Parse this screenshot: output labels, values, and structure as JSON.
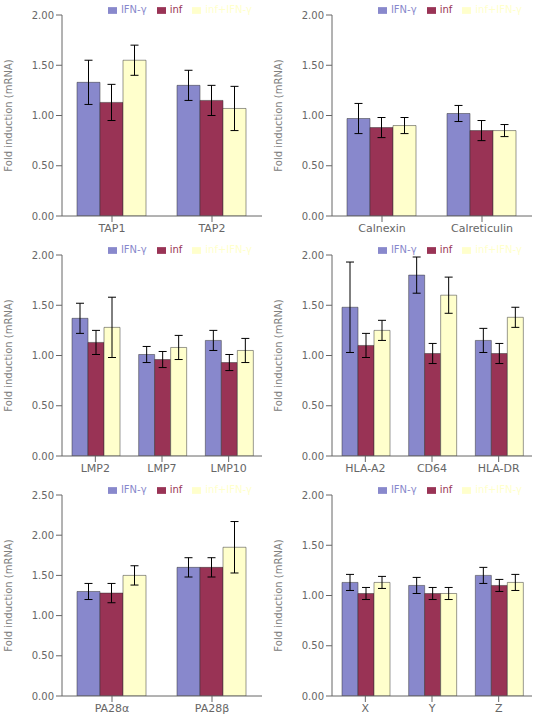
{
  "chart_data": [
    {
      "type": "bar",
      "categories": [
        "TAP1",
        "TAP2"
      ],
      "ylabel": "Fold induction (mRNA)",
      "ylim": [
        0,
        2.0
      ],
      "yticks": [
        {
          "value": 0.0,
          "label": "0.00"
        },
        {
          "value": 0.5,
          "label": "0.50"
        },
        {
          "value": 1.0,
          "label": "1.00"
        },
        {
          "value": 1.5,
          "label": "1.50"
        },
        {
          "value": 2.0,
          "label": "2.00"
        }
      ],
      "grid": false,
      "legend": "upper right",
      "series": [
        {
          "name": "IFN-γ",
          "color": "#8888cc",
          "values": [
            1.33,
            1.3
          ],
          "errors": [
            0.22,
            0.15
          ]
        },
        {
          "name": "inf",
          "color": "#993355",
          "values": [
            1.13,
            1.15
          ],
          "errors": [
            0.18,
            0.15
          ]
        },
        {
          "name": "inf+IFN-γ",
          "color": "#ffffcc",
          "values": [
            1.55,
            1.07
          ],
          "errors": [
            0.15,
            0.22
          ]
        }
      ]
    },
    {
      "type": "bar",
      "categories": [
        "Calnexin",
        "Calreticulin"
      ],
      "ylabel": "Fold induction (mRNA)",
      "ylim": [
        0,
        2.0
      ],
      "yticks": [
        {
          "value": 0.0,
          "label": "0.00"
        },
        {
          "value": 0.5,
          "label": "0.50"
        },
        {
          "value": 1.0,
          "label": "1.00"
        },
        {
          "value": 1.5,
          "label": "1.50"
        },
        {
          "value": 2.0,
          "label": "2.00"
        }
      ],
      "grid": false,
      "legend": "upper right",
      "series": [
        {
          "name": "IFN-γ",
          "color": "#8888cc",
          "values": [
            0.97,
            1.02
          ],
          "errors": [
            0.15,
            0.08
          ]
        },
        {
          "name": "inf",
          "color": "#993355",
          "values": [
            0.88,
            0.85
          ],
          "errors": [
            0.1,
            0.1
          ]
        },
        {
          "name": "inf+IFN-γ",
          "color": "#ffffcc",
          "values": [
            0.9,
            0.85
          ],
          "errors": [
            0.08,
            0.06
          ]
        }
      ]
    },
    {
      "type": "bar",
      "categories": [
        "LMP2",
        "LMP7",
        "LMP10"
      ],
      "ylabel": "Fold induction (mRNA)",
      "ylim": [
        0,
        2.0
      ],
      "yticks": [
        {
          "value": 0.0,
          "label": "0.00"
        },
        {
          "value": 0.5,
          "label": "0.50"
        },
        {
          "value": 1.0,
          "label": "1.00"
        },
        {
          "value": 1.5,
          "label": "1.50"
        },
        {
          "value": 2.0,
          "label": "2.00"
        }
      ],
      "grid": false,
      "legend": "upper right",
      "series": [
        {
          "name": "IFN-γ",
          "color": "#8888cc",
          "values": [
            1.37,
            1.01,
            1.15
          ],
          "errors": [
            0.15,
            0.08,
            0.1
          ]
        },
        {
          "name": "inf",
          "color": "#993355",
          "values": [
            1.13,
            0.96,
            0.93
          ],
          "errors": [
            0.12,
            0.08,
            0.08
          ]
        },
        {
          "name": "inf+IFN-γ",
          "color": "#ffffcc",
          "values": [
            1.28,
            1.08,
            1.05
          ],
          "errors": [
            0.3,
            0.12,
            0.12
          ]
        }
      ]
    },
    {
      "type": "bar",
      "categories": [
        "HLA-A2",
        "CD64",
        "HLA-DR"
      ],
      "ylabel": "Fold induction (mRNA)",
      "ylim": [
        0,
        2.0
      ],
      "yticks": [
        {
          "value": 0.0,
          "label": "0.00"
        },
        {
          "value": 0.5,
          "label": "0.50"
        },
        {
          "value": 1.0,
          "label": "1.00"
        },
        {
          "value": 1.5,
          "label": "1.50"
        },
        {
          "value": 2.0,
          "label": "2.00"
        }
      ],
      "grid": false,
      "legend": "upper right",
      "series": [
        {
          "name": "IFN-γ",
          "color": "#8888cc",
          "values": [
            1.48,
            1.8,
            1.15
          ],
          "errors": [
            0.45,
            0.18,
            0.12
          ]
        },
        {
          "name": "inf",
          "color": "#993355",
          "values": [
            1.1,
            1.02,
            1.02
          ],
          "errors": [
            0.12,
            0.1,
            0.1
          ]
        },
        {
          "name": "inf+IFN-γ",
          "color": "#ffffcc",
          "values": [
            1.25,
            1.6,
            1.38
          ],
          "errors": [
            0.1,
            0.18,
            0.1
          ]
        }
      ]
    },
    {
      "type": "bar",
      "categories": [
        "PA28α",
        "PA28β"
      ],
      "ylabel": "Fold induction (mRNA)",
      "ylim": [
        0,
        2.5
      ],
      "yticks": [
        {
          "value": 0.0,
          "label": "0.00"
        },
        {
          "value": 0.5,
          "label": "0.50"
        },
        {
          "value": 1.0,
          "label": "1.00"
        },
        {
          "value": 1.5,
          "label": "1.50"
        },
        {
          "value": 2.0,
          "label": "2.00"
        },
        {
          "value": 2.5,
          "label": "2.50"
        }
      ],
      "grid": false,
      "legend": "upper right",
      "series": [
        {
          "name": "IFN-γ",
          "color": "#8888cc",
          "values": [
            1.3,
            1.6
          ],
          "errors": [
            0.1,
            0.12
          ]
        },
        {
          "name": "inf",
          "color": "#993355",
          "values": [
            1.28,
            1.6
          ],
          "errors": [
            0.12,
            0.12
          ]
        },
        {
          "name": "inf+IFN-γ",
          "color": "#ffffcc",
          "values": [
            1.5,
            1.85
          ],
          "errors": [
            0.12,
            0.32
          ]
        }
      ]
    },
    {
      "type": "bar",
      "categories": [
        "X",
        "Y",
        "Z"
      ],
      "ylabel": "Fold induction (mRNA)",
      "ylim": [
        0,
        2.0
      ],
      "yticks": [
        {
          "value": 0.0,
          "label": "0.00"
        },
        {
          "value": 0.5,
          "label": "0.50"
        },
        {
          "value": 1.0,
          "label": "1.00"
        },
        {
          "value": 1.5,
          "label": "1.50"
        },
        {
          "value": 2.0,
          "label": "2.00"
        }
      ],
      "grid": false,
      "legend": "upper right",
      "series": [
        {
          "name": "IFN-γ",
          "color": "#8888cc",
          "values": [
            1.13,
            1.1,
            1.2
          ],
          "errors": [
            0.08,
            0.08,
            0.08
          ]
        },
        {
          "name": "inf",
          "color": "#993355",
          "values": [
            1.02,
            1.02,
            1.1
          ],
          "errors": [
            0.06,
            0.06,
            0.06
          ]
        },
        {
          "name": "inf+IFN-γ",
          "color": "#ffffcc",
          "values": [
            1.13,
            1.02,
            1.13
          ],
          "errors": [
            0.06,
            0.06,
            0.08
          ]
        }
      ]
    }
  ]
}
